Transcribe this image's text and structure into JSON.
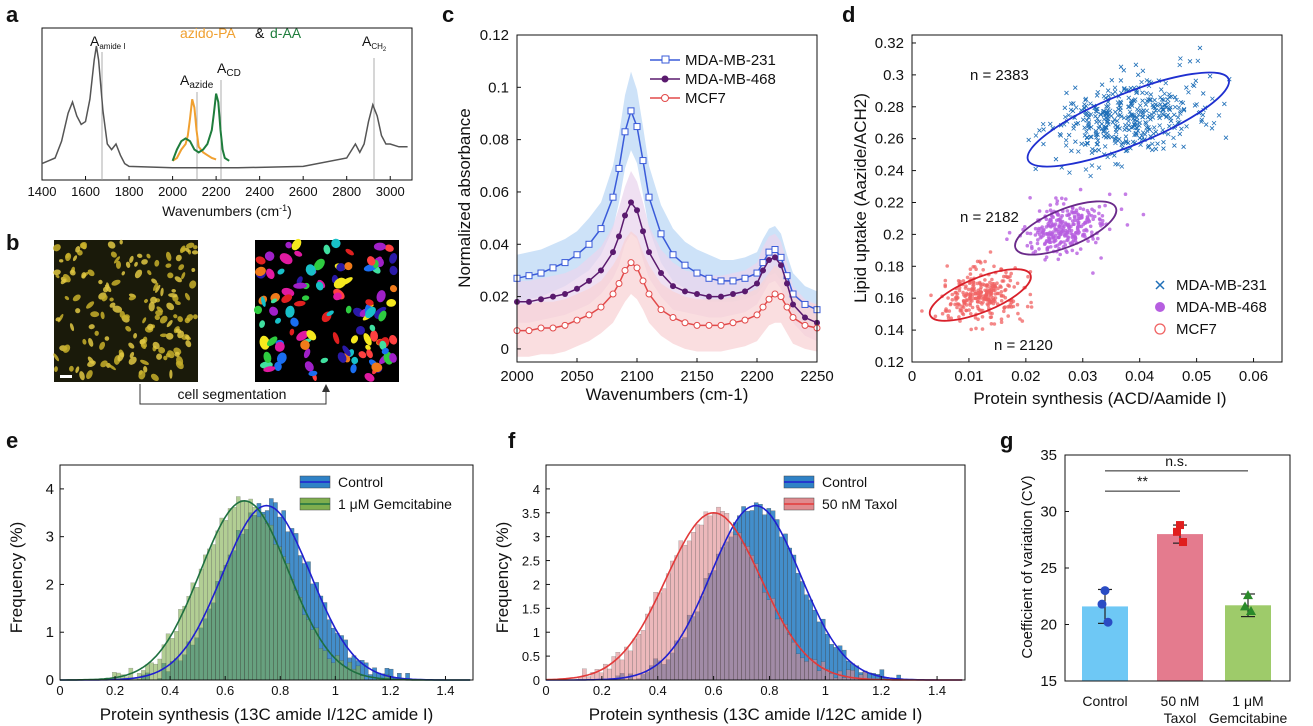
{
  "panel_letters": {
    "a": "a",
    "b": "b",
    "c": "c",
    "d": "d",
    "e": "e",
    "f": "f",
    "g": "g"
  },
  "panel_a": {
    "legend_azido": "azido-PA",
    "legend_amp": "&",
    "legend_daa": "d-AA",
    "peak_amide_main": "A",
    "peak_amide_sub": "amide I",
    "peak_azide_main": "A",
    "peak_azide_sub": "azide",
    "peak_cd_main": "A",
    "peak_cd_sub": "CD",
    "peak_ch2_main": "A",
    "peak_ch2_sub": "CH",
    "peak_ch2_subsub": "2",
    "xlabel_pre": "Wavenumbers (cm",
    "xlabel_sup": "-1",
    "xlabel_post": ")",
    "colors": {
      "black": "#555555",
      "orange": "#f0a030",
      "green": "#1e7d3c"
    }
  },
  "panel_b": {
    "caption": "cell segmentation"
  },
  "chart_data": [
    {
      "panel": "a",
      "type": "line",
      "xlabel": "Wavenumbers (cm-1)",
      "x_ticks": [
        1400,
        1600,
        1800,
        2000,
        2200,
        2400,
        2600,
        2800,
        3000
      ],
      "xlim": [
        1400,
        3100
      ],
      "series": [
        {
          "name": "azido-PA",
          "color": "#f0a030",
          "x": [
            2000,
            2020,
            2040,
            2060,
            2070,
            2080,
            2090,
            2100,
            2110,
            2120,
            2140,
            2160,
            2180,
            2200
          ],
          "y": [
            0.08,
            0.1,
            0.16,
            0.2,
            0.26,
            0.38,
            0.52,
            0.46,
            0.3,
            0.18,
            0.14,
            0.12,
            0.1,
            0.09
          ]
        },
        {
          "name": "d-AA",
          "color": "#1e7d3c",
          "x": [
            2000,
            2020,
            2040,
            2060,
            2080,
            2100,
            2120,
            2140,
            2160,
            2180,
            2190,
            2200,
            2210,
            2220,
            2230,
            2240,
            2260
          ],
          "y": [
            0.08,
            0.16,
            0.22,
            0.24,
            0.22,
            0.16,
            0.14,
            0.16,
            0.2,
            0.3,
            0.42,
            0.56,
            0.5,
            0.3,
            0.16,
            0.1,
            0.08
          ]
        },
        {
          "name": "",
          "color": "#555555",
          "x": [
            1400,
            1430,
            1460,
            1490,
            1520,
            1540,
            1560,
            1580,
            1600,
            1620,
            1640,
            1650,
            1660,
            1680,
            1700,
            1720,
            1740,
            1760,
            1780,
            1800,
            2000,
            2300,
            2600,
            2800,
            2840,
            2860,
            2880,
            2900,
            2920,
            2940,
            2960,
            2980,
            3000,
            3040,
            3080
          ],
          "y": [
            0.06,
            0.08,
            0.1,
            0.22,
            0.42,
            0.5,
            0.4,
            0.34,
            0.36,
            0.52,
            0.8,
            0.9,
            0.8,
            0.44,
            0.2,
            0.16,
            0.2,
            0.12,
            0.06,
            0.04,
            0.03,
            0.03,
            0.04,
            0.1,
            0.2,
            0.14,
            0.2,
            0.36,
            0.48,
            0.4,
            0.26,
            0.2,
            0.2,
            0.18,
            0.18
          ]
        }
      ]
    },
    {
      "panel": "c",
      "type": "line",
      "xlabel": "Wavenumbers (cm-1)",
      "ylabel": "Normalized absorbance",
      "xlim": [
        2000,
        2250
      ],
      "ylim": [
        -0.005,
        0.12
      ],
      "x_ticks": [
        2000,
        2050,
        2100,
        2150,
        2200,
        2250
      ],
      "y_ticks": [
        0,
        0.02,
        0.04,
        0.06,
        0.08,
        0.1,
        0.12
      ],
      "legend_position": "top-right",
      "x": [
        2000,
        2010,
        2020,
        2030,
        2040,
        2050,
        2060,
        2070,
        2080,
        2085,
        2090,
        2095,
        2100,
        2105,
        2110,
        2120,
        2130,
        2140,
        2150,
        2160,
        2170,
        2180,
        2190,
        2200,
        2205,
        2210,
        2215,
        2220,
        2225,
        2230,
        2240,
        2250
      ],
      "series": [
        {
          "name": "MDA-MB-231",
          "color": "#3a5bd9",
          "band_color": "#bcd8f6",
          "marker": "square",
          "values": [
            0.027,
            0.028,
            0.029,
            0.031,
            0.033,
            0.036,
            0.04,
            0.046,
            0.058,
            0.069,
            0.083,
            0.091,
            0.085,
            0.072,
            0.058,
            0.044,
            0.036,
            0.032,
            0.029,
            0.027,
            0.026,
            0.026,
            0.027,
            0.029,
            0.033,
            0.037,
            0.038,
            0.035,
            0.028,
            0.021,
            0.017,
            0.015
          ],
          "band": [
            0.009,
            0.009,
            0.009,
            0.009,
            0.009,
            0.009,
            0.01,
            0.01,
            0.012,
            0.013,
            0.014,
            0.015,
            0.014,
            0.013,
            0.012,
            0.011,
            0.01,
            0.009,
            0.009,
            0.009,
            0.008,
            0.008,
            0.008,
            0.008,
            0.009,
            0.009,
            0.009,
            0.009,
            0.008,
            0.008,
            0.007,
            0.007
          ]
        },
        {
          "name": "MDA-MB-468",
          "color": "#5a1a6e",
          "band_color": "#ead5ee",
          "marker": "filled-circle",
          "values": [
            0.018,
            0.018,
            0.019,
            0.02,
            0.021,
            0.023,
            0.026,
            0.03,
            0.037,
            0.043,
            0.051,
            0.056,
            0.053,
            0.045,
            0.037,
            0.029,
            0.024,
            0.022,
            0.021,
            0.02,
            0.02,
            0.021,
            0.022,
            0.025,
            0.03,
            0.034,
            0.035,
            0.032,
            0.025,
            0.017,
            0.012,
            0.01
          ],
          "band": [
            0.008,
            0.008,
            0.008,
            0.008,
            0.008,
            0.008,
            0.009,
            0.009,
            0.01,
            0.011,
            0.011,
            0.012,
            0.011,
            0.011,
            0.01,
            0.009,
            0.009,
            0.008,
            0.008,
            0.008,
            0.008,
            0.008,
            0.008,
            0.008,
            0.009,
            0.009,
            0.009,
            0.009,
            0.008,
            0.007,
            0.007,
            0.007
          ]
        },
        {
          "name": "MCF7",
          "color": "#e24a4a",
          "band_color": "#f8d3d6",
          "marker": "open-circle",
          "values": [
            0.007,
            0.007,
            0.008,
            0.008,
            0.009,
            0.011,
            0.013,
            0.016,
            0.021,
            0.025,
            0.03,
            0.033,
            0.031,
            0.026,
            0.021,
            0.015,
            0.012,
            0.01,
            0.009,
            0.009,
            0.009,
            0.01,
            0.011,
            0.013,
            0.016,
            0.019,
            0.021,
            0.02,
            0.016,
            0.012,
            0.009,
            0.008
          ],
          "band": [
            0.01,
            0.01,
            0.01,
            0.01,
            0.01,
            0.01,
            0.01,
            0.01,
            0.011,
            0.011,
            0.012,
            0.012,
            0.012,
            0.011,
            0.011,
            0.01,
            0.01,
            0.01,
            0.01,
            0.01,
            0.01,
            0.01,
            0.01,
            0.01,
            0.01,
            0.01,
            0.011,
            0.01,
            0.01,
            0.01,
            0.009,
            0.009
          ]
        }
      ]
    },
    {
      "panel": "d",
      "type": "scatter",
      "xlabel": "Protein synthesis (ACD/Aamide I)",
      "ylabel": "Lipid uptake (Aazide/ACH2)",
      "xlim": [
        0,
        0.065
      ],
      "ylim": [
        0.12,
        0.325
      ],
      "x_ticks": [
        0,
        0.01,
        0.02,
        0.03,
        0.04,
        0.05,
        0.06
      ],
      "y_ticks": [
        0.12,
        0.14,
        0.16,
        0.18,
        0.2,
        0.22,
        0.24,
        0.26,
        0.28,
        0.3,
        0.32
      ],
      "legend_position": "bottom-right",
      "series": [
        {
          "name": "MDA-MB-231",
          "color": "#1f6fb8",
          "marker": "x",
          "n_label": "n = 2383",
          "n": 2383,
          "center": [
            0.038,
            0.272
          ],
          "spread": [
            0.007,
            0.012
          ],
          "ellipse_radii": [
            0.019,
            0.036
          ]
        },
        {
          "name": "MDA-MB-468",
          "color": "#b65ee0",
          "marker": "filled-circle",
          "n_label": "n = 2182",
          "n": 2182,
          "center": [
            0.027,
            0.204
          ],
          "spread": [
            0.0035,
            0.0085
          ],
          "ellipse_radii": [
            0.0095,
            0.026
          ]
        },
        {
          "name": "MCF7",
          "color": "#f06262",
          "marker": "open-circle",
          "n_label": "n = 2120",
          "n": 2120,
          "center": [
            0.012,
            0.162
          ],
          "spread": [
            0.0035,
            0.0085
          ],
          "ellipse_radii": [
            0.0095,
            0.024
          ]
        }
      ]
    },
    {
      "panel": "e",
      "type": "bar",
      "xlabel": "Protein synthesis (13C amide I/12C amide I)",
      "ylabel": "Frequency (%)",
      "xlim": [
        0,
        1.5
      ],
      "ylim": [
        0,
        4.5
      ],
      "x_ticks": [
        0,
        0.2,
        0.4,
        0.6,
        0.8,
        1,
        1.2,
        1.4
      ],
      "y_ticks": [
        0,
        1,
        2,
        3,
        4
      ],
      "legend_position": "top-right",
      "series": [
        {
          "name": "Control",
          "color": "#2f82c6",
          "line_color": "#2020d0",
          "mean": 0.75,
          "sd": 0.16,
          "peak": 3.65
        },
        {
          "name": "1 μM Gemcitabine",
          "color": "#7fae4e",
          "line_color": "#1e7040",
          "mean": 0.67,
          "sd": 0.16,
          "peak": 3.75
        }
      ]
    },
    {
      "panel": "f",
      "type": "bar",
      "xlabel": "Protein synthesis (13C amide I/12C amide I)",
      "ylabel": "Frequency (%)",
      "xlim": [
        0,
        1.5
      ],
      "ylim": [
        0,
        4.5
      ],
      "x_ticks": [
        0,
        0.2,
        0.4,
        0.6,
        0.8,
        1,
        1.2,
        1.4
      ],
      "y_ticks": [
        0,
        0.5,
        1,
        1.5,
        2,
        2.5,
        3,
        3.5,
        4
      ],
      "legend_position": "top-right",
      "series": [
        {
          "name": "Control",
          "color": "#2f82c6",
          "line_color": "#2020d0",
          "mean": 0.75,
          "sd": 0.16,
          "peak": 3.65
        },
        {
          "name": "50 nM Taxol",
          "color": "#e08a8e",
          "line_color": "#e23a3a",
          "mean": 0.6,
          "sd": 0.17,
          "peak": 3.5
        }
      ]
    },
    {
      "panel": "g",
      "type": "bar",
      "ylabel": "Coefficient of variation (CV)",
      "ylim": [
        15,
        35
      ],
      "y_ticks": [
        15,
        20,
        25,
        30,
        35
      ],
      "categories": [
        "Control",
        "50 nM Taxol",
        "1 μM Gemcitabine"
      ],
      "category_lines": [
        [
          "Control"
        ],
        [
          "50 nM",
          "Taxol"
        ],
        [
          "1 μM",
          "Gemcitabine"
        ]
      ],
      "values": [
        21.6,
        28.0,
        21.7
      ],
      "errors": [
        1.5,
        0.8,
        1.0
      ],
      "points": [
        [
          23.0,
          21.8,
          20.2
        ],
        [
          28.8,
          28.2,
          27.3
        ],
        [
          22.6,
          21.6,
          21.2
        ]
      ],
      "bar_colors": [
        "#6ec8f5",
        "#e47b8e",
        "#9ecb6a"
      ],
      "point_colors": [
        "#2a4cc4",
        "#e01e1e",
        "#2a8a2a"
      ],
      "significance": [
        {
          "from": 0,
          "to": 1,
          "label": "**",
          "y": 31.8
        },
        {
          "from": 0,
          "to": 2,
          "label": "n.s.",
          "y": 33.6
        }
      ]
    }
  ]
}
